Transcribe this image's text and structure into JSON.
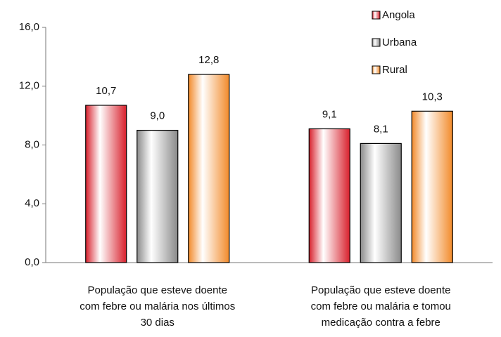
{
  "chart_data": {
    "type": "bar",
    "categories": [
      [
        "População que esteve doente",
        "com febre ou malária nos últimos",
        "30 dias"
      ],
      [
        "População que esteve doente",
        "com febre ou malária e tomou",
        "medicação contra a febre"
      ]
    ],
    "series": [
      {
        "name": "Angola",
        "color": "#d8202c",
        "values": [
          10.7,
          9.1
        ],
        "value_labels": [
          "10,7",
          "9,1"
        ]
      },
      {
        "name": "Urbana",
        "color": "#8a8a8a",
        "values": [
          9.0,
          8.1
        ],
        "value_labels": [
          "9,0",
          "8,1"
        ]
      },
      {
        "name": "Rural",
        "color": "#f28a2a",
        "values": [
          12.8,
          10.3
        ],
        "value_labels": [
          "12,8",
          "10,3"
        ]
      }
    ],
    "ylim": [
      0,
      16
    ],
    "yticks": [
      {
        "value": 0,
        "label": "0,0"
      },
      {
        "value": 4,
        "label": "4,0"
      },
      {
        "value": 8,
        "label": "8,0"
      },
      {
        "value": 12,
        "label": "12,0"
      },
      {
        "value": 16,
        "label": "16,0"
      }
    ],
    "grid": false,
    "legend": "top-right"
  }
}
